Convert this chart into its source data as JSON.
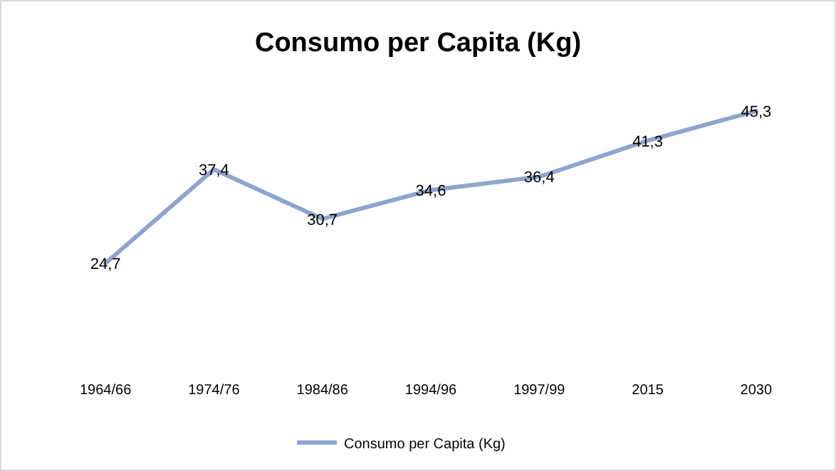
{
  "chart_data": {
    "type": "line",
    "title": "Consumo per Capita (Kg)",
    "categories": [
      "1964/66",
      "1974/76",
      "1984/86",
      "1994/96",
      "1997/99",
      "2015",
      "2030"
    ],
    "series": [
      {
        "name": "Consumo per Capita (Kg)",
        "color": "#8ea5cf",
        "values": [
          24.7,
          37.4,
          30.7,
          34.6,
          36.4,
          41.3,
          45.3
        ],
        "value_labels": [
          "24,7",
          "37,4",
          "30,7",
          "34,6",
          "36,4",
          "41,3",
          "45,3"
        ]
      }
    ],
    "tick_labels": "x",
    "legend": "bottom",
    "marker": "none",
    "line_style": "solid"
  }
}
